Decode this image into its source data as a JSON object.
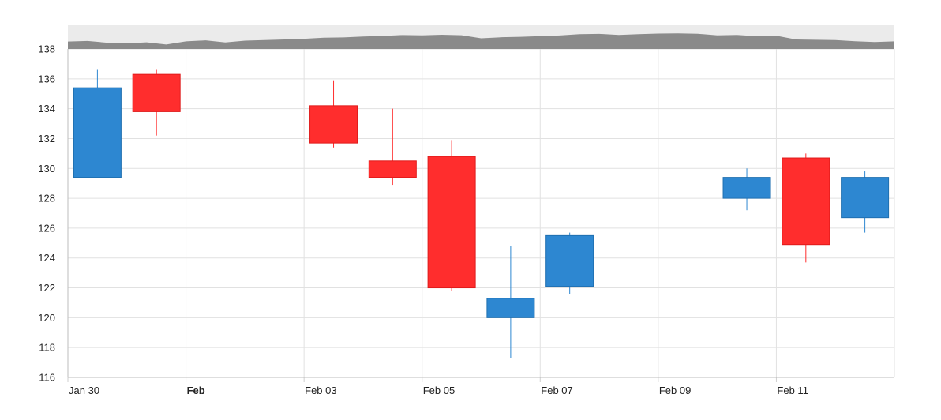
{
  "chart_data": {
    "type": "candlestick",
    "title": "",
    "xlabel": "",
    "ylabel": "",
    "ylim": [
      116,
      138
    ],
    "y_ticks": [
      116,
      118,
      120,
      122,
      124,
      126,
      128,
      130,
      132,
      134,
      136,
      138
    ],
    "x_ticks": [
      {
        "date": "2025-01-30",
        "label": "Jan 30",
        "bold": false
      },
      {
        "date": "2025-02-01",
        "label": "Feb",
        "bold": true
      },
      {
        "date": "2025-02-03",
        "label": "Feb 03",
        "bold": false
      },
      {
        "date": "2025-02-05",
        "label": "Feb 05",
        "bold": false
      },
      {
        "date": "2025-02-07",
        "label": "Feb 07",
        "bold": false
      },
      {
        "date": "2025-02-09",
        "label": "Feb 09",
        "bold": false
      },
      {
        "date": "2025-02-11",
        "label": "Feb 11",
        "bold": false
      }
    ],
    "x_range": [
      "2025-01-30",
      "2025-02-13"
    ],
    "grid": true,
    "colors": {
      "up": "#2d87d1",
      "down": "#ff2d2d",
      "navigator": "#8a8a8a",
      "navigator_bg": "#ebebeb",
      "grid": "#e1e1e1"
    },
    "candles": [
      {
        "date": "2025-01-30",
        "open": 129.4,
        "high": 136.6,
        "low": 129.4,
        "close": 135.4
      },
      {
        "date": "2025-01-31",
        "open": 136.3,
        "high": 136.6,
        "low": 132.2,
        "close": 133.8
      },
      {
        "date": "2025-02-03",
        "open": 134.2,
        "high": 135.9,
        "low": 131.4,
        "close": 131.7
      },
      {
        "date": "2025-02-04",
        "open": 130.5,
        "high": 134.0,
        "low": 128.9,
        "close": 129.4
      },
      {
        "date": "2025-02-05",
        "open": 130.8,
        "high": 131.9,
        "low": 121.8,
        "close": 122.0
      },
      {
        "date": "2025-02-06",
        "open": 120.0,
        "high": 124.8,
        "low": 117.3,
        "close": 121.3
      },
      {
        "date": "2025-02-07",
        "open": 122.1,
        "high": 125.7,
        "low": 121.6,
        "close": 125.5
      },
      {
        "date": "2025-02-10",
        "open": 128.0,
        "high": 130.0,
        "low": 127.2,
        "close": 129.4
      },
      {
        "date": "2025-02-11",
        "open": 130.7,
        "high": 131.0,
        "low": 123.7,
        "close": 124.9
      },
      {
        "date": "2025-02-12",
        "open": 126.7,
        "high": 129.8,
        "low": 125.7,
        "close": 129.4
      }
    ],
    "navigator_series": [
      135.0,
      135.4,
      134.2,
      133.8,
      134.5,
      133.0,
      135.1,
      135.8,
      134.4,
      135.6,
      136.0,
      136.4,
      136.9,
      137.6,
      137.8,
      138.4,
      138.8,
      139.4,
      139.2,
      139.6,
      139.3,
      137.2,
      137.9,
      138.2,
      138.7,
      139.1,
      140.0,
      140.2,
      139.5,
      140.0,
      140.4,
      140.5,
      140.3,
      139.2,
      139.5,
      138.6,
      138.9,
      136.4,
      136.2,
      136.0,
      135.2,
      134.7,
      135.1
    ]
  }
}
